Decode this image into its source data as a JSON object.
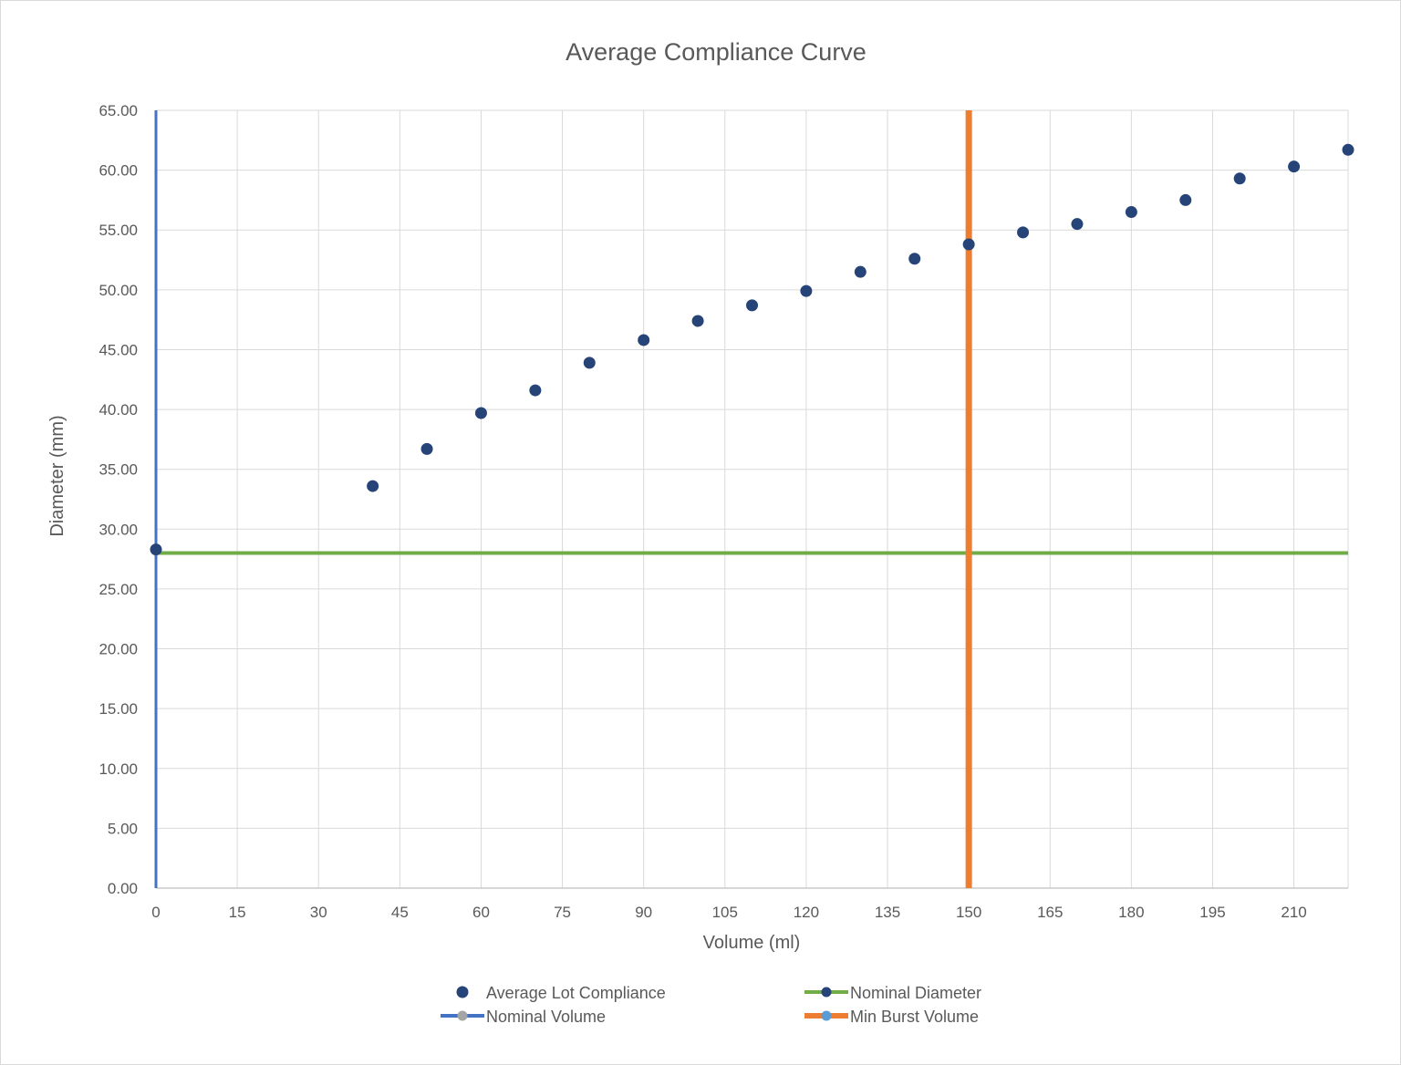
{
  "chart_data": {
    "type": "scatter",
    "title": "Average Compliance Curve",
    "xlabel": "Volume (ml)",
    "ylabel": "Diameter (mm)",
    "xlim": [
      0,
      220
    ],
    "ylim": [
      0,
      65
    ],
    "x_ticks": [
      0,
      15,
      30,
      45,
      60,
      75,
      90,
      105,
      120,
      135,
      150,
      165,
      180,
      195,
      210
    ],
    "y_ticks": [
      "0.00",
      "5.00",
      "10.00",
      "15.00",
      "20.00",
      "25.00",
      "30.00",
      "35.00",
      "40.00",
      "45.00",
      "50.00",
      "55.00",
      "60.00",
      "65.00"
    ],
    "grid": true,
    "legend_position": "bottom",
    "series": [
      {
        "name": "Average Lot Compliance",
        "kind": "points",
        "color": "#264478",
        "x": [
          0,
          40,
          50,
          60,
          70,
          80,
          90,
          100,
          110,
          120,
          130,
          140,
          150,
          160,
          170,
          180,
          190,
          200,
          210,
          220
        ],
        "y": [
          28.3,
          33.6,
          36.7,
          39.7,
          41.6,
          43.9,
          45.8,
          47.4,
          48.7,
          49.9,
          51.5,
          52.6,
          53.8,
          54.8,
          55.5,
          56.5,
          57.5,
          59.3,
          60.3,
          61.7
        ]
      },
      {
        "name": "Nominal Diameter",
        "kind": "hline",
        "color": "#70ad47",
        "value": 28
      },
      {
        "name": "Nominal Volume",
        "kind": "vline",
        "color": "#4472c4",
        "value": 0
      },
      {
        "name": "Min Burst Volume",
        "kind": "vline",
        "color": "#ed7d31",
        "value": 150
      }
    ]
  }
}
